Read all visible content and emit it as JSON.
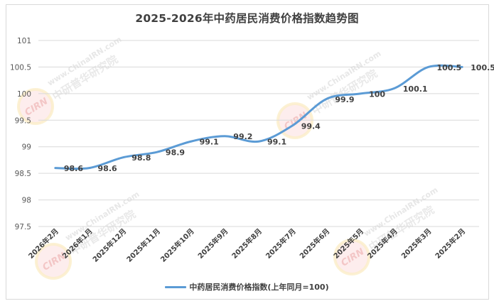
{
  "title": "2025-2026年中药居民消费价格指数趋势图",
  "legend": {
    "label": "中药居民消费价格指数(上年同月=100)",
    "color": "#5b9bd5"
  },
  "watermark": {
    "url": "www.ChinaIRN.com",
    "name": "中研普华研究院",
    "logo": "CIRN"
  },
  "y_ticks": [
    "101",
    "100.5",
    "100",
    "99.5",
    "99",
    "98.5",
    "98",
    "97.5"
  ],
  "chart_data": {
    "type": "line",
    "title": "2025-2026年中药居民消费价格指数趋势图",
    "xlabel": "",
    "ylabel": "",
    "ylim": [
      97.5,
      101
    ],
    "y_tick_step": 0.5,
    "grid": true,
    "legend_position": "bottom",
    "smooth": true,
    "categories": [
      "2026年2月",
      "2026年1月",
      "2025年12月",
      "2025年11月",
      "2025年10月",
      "2025年9月",
      "2025年8月",
      "2025年7月",
      "2025年6月",
      "2025年5月",
      "2025年4月",
      "2025年3月",
      "2025年2月"
    ],
    "series": [
      {
        "name": "中药居民消费价格指数(上年同月=100)",
        "color": "#5b9bd5",
        "values": [
          98.6,
          98.6,
          98.8,
          98.9,
          99.1,
          99.2,
          99.1,
          99.4,
          99.9,
          100,
          100.1,
          100.5,
          100.5
        ]
      }
    ],
    "data_labels": [
      "98.6",
      "98.6",
      "98.8",
      "98.9",
      "99.1",
      "99.2",
      "99.1",
      "99.4",
      "99.9",
      "100",
      "100.1",
      "100.5",
      "100.5"
    ]
  }
}
